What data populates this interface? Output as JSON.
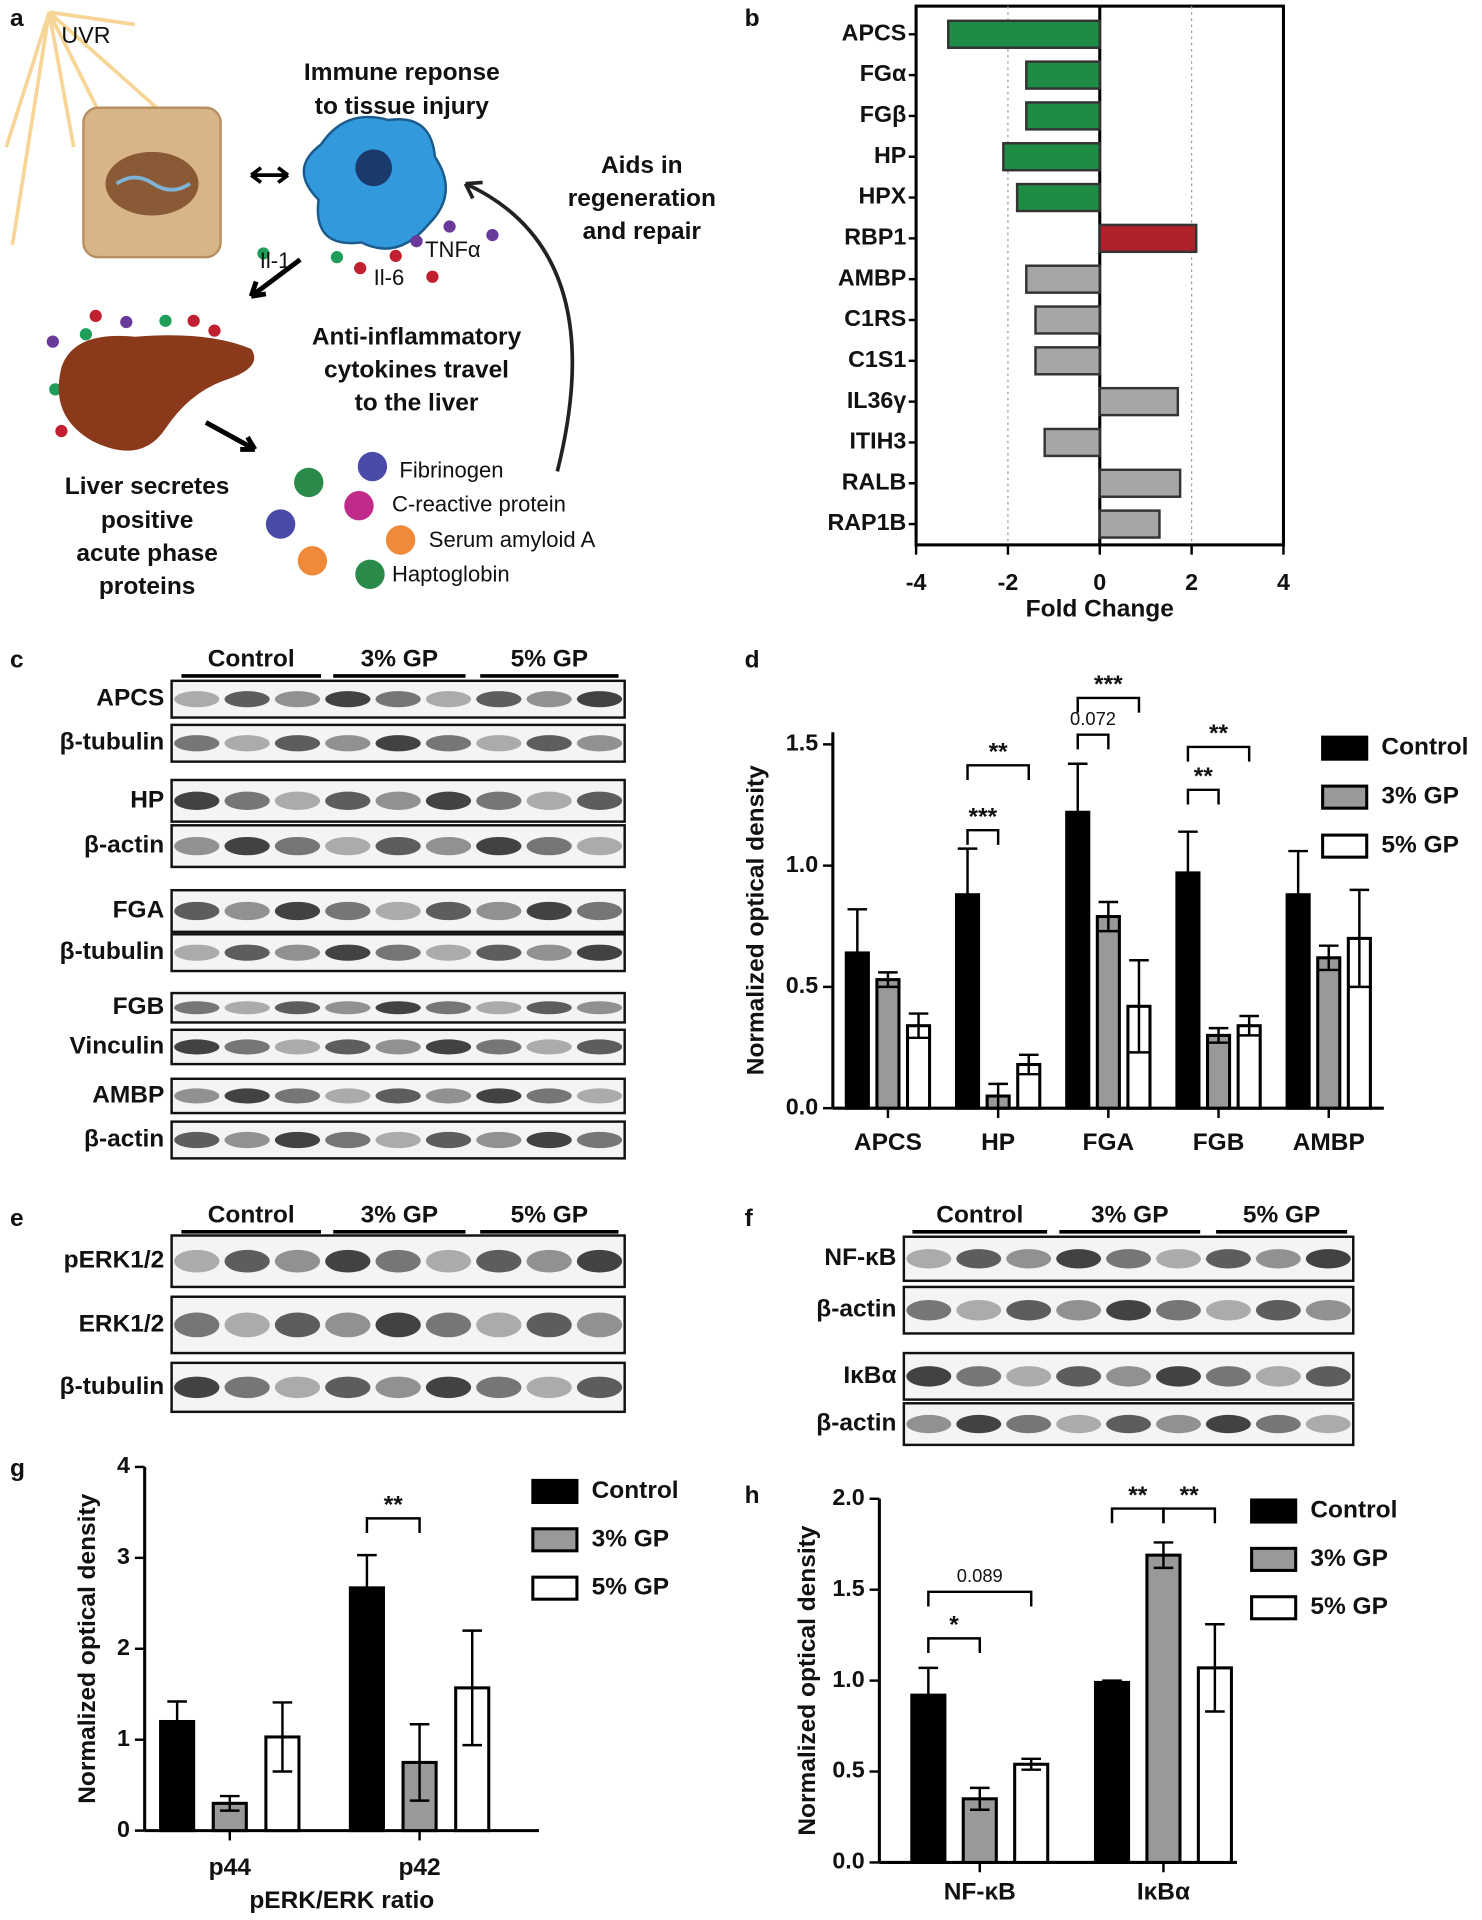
{
  "panel_labels": [
    "a",
    "b",
    "c",
    "d",
    "e",
    "f",
    "g",
    "h"
  ],
  "diagram": {
    "uvr": "UVR",
    "immune_response": [
      "Immune reponse",
      "to tissue injury"
    ],
    "repair": [
      "Aids in",
      "regeneration",
      "and repair"
    ],
    "cytokines": [
      "Il-1",
      "Il-6",
      "TNFα"
    ],
    "travel": [
      "Anti-inflammatory",
      "cytokines travel",
      "to the liver"
    ],
    "liver": [
      "Liver secretes",
      "positive",
      "acute phase",
      "proteins"
    ],
    "proteins": [
      "Fibrinogen",
      "C-reactive protein",
      "Serum amyloid A",
      "Haptoglobin"
    ]
  },
  "blots": {
    "c": {
      "groups": [
        "Control",
        "3% GP",
        "5% GP"
      ],
      "rows": [
        "APCS",
        "β-tubulin",
        "HP",
        "β-actin",
        "FGA",
        "β-tubulin",
        "FGB",
        "Vinculin",
        "AMBP",
        "β-actin"
      ]
    },
    "e": {
      "groups": [
        "Control",
        "3% GP",
        "5% GP"
      ],
      "rows": [
        "pERK1/2",
        "ERK1/2",
        "β-tubulin"
      ]
    },
    "g": {
      "groups": [
        "Control",
        "3% GP",
        "5% GP"
      ],
      "rows": [
        "NF-κB",
        "β-actin",
        "IκBα",
        "β-actin"
      ]
    }
  },
  "chart_data": [
    {
      "type": "barh",
      "categories": [
        "APCS",
        "FGα",
        "FGβ",
        "HP",
        "HPX",
        "RBP1",
        "AMBP",
        "C1RS",
        "C1S1",
        "IL36γ",
        "ITIH3",
        "RALB",
        "RAP1B"
      ],
      "values": [
        -3.3,
        -1.6,
        -1.6,
        -2.1,
        -1.8,
        2.1,
        -1.6,
        -1.4,
        -1.4,
        1.7,
        -1.2,
        1.75,
        1.3
      ],
      "colors": [
        "#1e8c45",
        "#1e8c45",
        "#1e8c45",
        "#1e8c45",
        "#1e8c45",
        "#b0202a",
        "#a6a6a6",
        "#a6a6a6",
        "#a6a6a6",
        "#a6a6a6",
        "#a6a6a6",
        "#a6a6a6",
        "#a6a6a6"
      ],
      "xlim": [
        -4,
        4
      ],
      "xticks": [
        -4,
        -2,
        0,
        2,
        4
      ],
      "xlabel": "Fold Change",
      "grid": true
    },
    {
      "type": "grouped_bar",
      "ylabel": "Normalized optical density",
      "categories": [
        "APCS",
        "HP",
        "FGA",
        "FGB",
        "AMBP"
      ],
      "series": [
        {
          "name": "Control",
          "color": "#000000",
          "values": [
            0.64,
            0.88,
            1.22,
            0.97,
            0.88
          ],
          "errors": [
            0.18,
            0.19,
            0.2,
            0.17,
            0.18
          ]
        },
        {
          "name": "3% GP",
          "color": "#999999",
          "values": [
            0.53,
            0.05,
            0.79,
            0.3,
            0.62
          ],
          "errors": [
            0.03,
            0.05,
            0.06,
            0.03,
            0.05
          ]
        },
        {
          "name": "5% GP",
          "color": "#ffffff",
          "values": [
            0.34,
            0.18,
            0.42,
            0.34,
            0.7
          ],
          "errors": [
            0.05,
            0.04,
            0.19,
            0.04,
            0.2
          ]
        }
      ],
      "ylim": [
        0,
        1.55
      ],
      "yticks": [
        {
          "value": 0,
          "label": "0.0"
        },
        0.5,
        {
          "value": 1,
          "label": "1.0"
        },
        1.5
      ],
      "annotations": [
        {
          "category": 1,
          "from": 0,
          "to": 1,
          "label": "***"
        },
        {
          "category": 1,
          "from": 0,
          "to": 2,
          "label": "**"
        },
        {
          "category": 2,
          "from": 0,
          "to": 1,
          "label": "0.072"
        },
        {
          "category": 2,
          "from": 0,
          "to": 2,
          "label": "***"
        },
        {
          "category": 3,
          "from": 0,
          "to": 1,
          "label": "**"
        },
        {
          "category": 3,
          "from": 0,
          "to": 2,
          "label": "**"
        }
      ],
      "legend": "upper right"
    },
    {
      "type": "grouped_bar",
      "ylabel": "Normalized optical density",
      "xlabel": "pERK/ERK ratio",
      "categories": [
        "p44",
        "p42"
      ],
      "series": [
        {
          "name": "Control",
          "color": "#000000",
          "values": [
            1.2,
            2.67
          ],
          "errors": [
            0.22,
            0.36
          ]
        },
        {
          "name": "3% GP",
          "color": "#999999",
          "values": [
            0.3,
            0.75
          ],
          "errors": [
            0.08,
            0.42
          ]
        },
        {
          "name": "5% GP",
          "color": "#ffffff",
          "values": [
            1.03,
            1.57
          ],
          "errors": [
            0.38,
            0.63
          ]
        }
      ],
      "ylim": [
        0,
        4
      ],
      "yticks": [
        0,
        1,
        2,
        3,
        4
      ],
      "annotations": [
        {
          "category": 1,
          "from": 0,
          "to": 1,
          "label": "**"
        }
      ],
      "legend": "upper right"
    },
    {
      "type": "grouped_bar",
      "ylabel": "Normalized optical density",
      "categories": [
        "NF-κB",
        "IκBα"
      ],
      "series": [
        {
          "name": "Control",
          "color": "#000000",
          "values": [
            0.92,
            0.99
          ],
          "errors": [
            0.15,
            0.01
          ]
        },
        {
          "name": "3% GP",
          "color": "#999999",
          "values": [
            0.35,
            1.69
          ],
          "errors": [
            0.06,
            0.07
          ]
        },
        {
          "name": "5% GP",
          "color": "#ffffff",
          "values": [
            0.54,
            1.07
          ],
          "errors": [
            0.03,
            0.24
          ]
        }
      ],
      "ylim": [
        0,
        2
      ],
      "yticks": [
        {
          "value": 0,
          "label": "0.0"
        },
        0.5,
        {
          "value": 1,
          "label": "1.0"
        },
        1.5,
        {
          "value": 2,
          "label": "2.0"
        }
      ],
      "annotations": [
        {
          "category": 0,
          "from": 0,
          "to": 1,
          "label": "*"
        },
        {
          "category": 0,
          "from": 0,
          "to": 2,
          "label": "0.089"
        },
        {
          "category": 1,
          "from": 0,
          "to": 1,
          "label": "**"
        },
        {
          "category": 1,
          "from": 1,
          "to": 2,
          "label": "**"
        }
      ],
      "legend": "upper right"
    }
  ]
}
